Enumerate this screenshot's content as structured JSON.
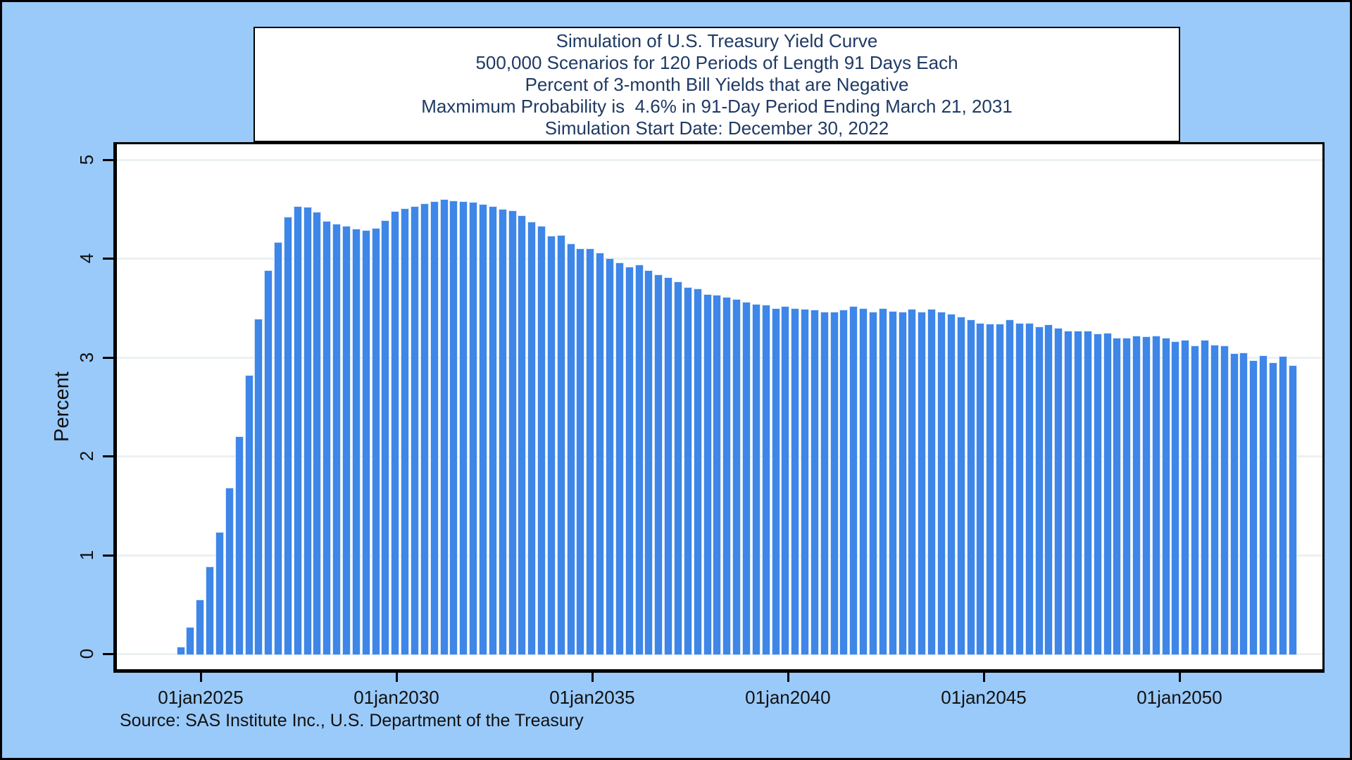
{
  "window": {
    "background_color": "#9ACAFA",
    "frame_color": "#000000"
  },
  "title_box": {
    "text_color": "#1F3A64",
    "lines": [
      "Simulation of U.S. Treasury Yield Curve",
      "500,000 Scenarios for 120 Periods of Length 91 Days Each",
      "Percent of 3-month Bill Yields that are Negative",
      "Maxmimum Probability is  4.6% in 91-Day Period Ending March 21, 2031",
      "Simulation Start Date: December 30, 2022"
    ]
  },
  "source_note": "Source: SAS Institute Inc., U.S. Department of the Treasury",
  "chart_data": {
    "type": "bar",
    "title": "Simulation of U.S. Treasury Yield Curve",
    "subtitle_lines": [
      "500,000 Scenarios for 120 Periods of Length 91 Days Each",
      "Percent of 3-month Bill Yields that are Negative",
      "Maxmimum Probability is  4.6% in 91-Day Period Ending March 21, 2031",
      "Simulation Start Date: December 30, 2022"
    ],
    "xlabel": "",
    "ylabel": "Percent",
    "ylim": [
      0,
      5
    ],
    "yticks": [
      0,
      1,
      2,
      3,
      4,
      5
    ],
    "xtick_labels": [
      "01jan2025",
      "01jan2030",
      "01jan2035",
      "01jan2040",
      "01jan2045",
      "01jan2050"
    ],
    "grid": true,
    "legend_position": "none",
    "bar_color": "#3E86E8",
    "bar_border_color": "#D6E6FA",
    "gridline_color": "#ECF1F1",
    "simulation_start_date": "2022-12-30",
    "period_length_days": 91,
    "n_periods": 120,
    "max_value_pct": 4.6,
    "max_value_period_end": "2031-03-21",
    "values_pct_negative": [
      0,
      0,
      0,
      0,
      0,
      0.07,
      0.27,
      0.55,
      0.88,
      1.23,
      1.68,
      2.2,
      2.82,
      3.39,
      3.88,
      4.17,
      4.42,
      4.53,
      4.52,
      4.47,
      4.38,
      4.35,
      4.33,
      4.3,
      4.29,
      4.31,
      4.39,
      4.48,
      4.51,
      4.53,
      4.56,
      4.58,
      4.6,
      4.59,
      4.58,
      4.57,
      4.55,
      4.53,
      4.5,
      4.49,
      4.44,
      4.37,
      4.33,
      4.23,
      4.24,
      4.15,
      4.1,
      4.1,
      4.06,
      4.0,
      3.96,
      3.92,
      3.94,
      3.88,
      3.84,
      3.81,
      3.77,
      3.71,
      3.7,
      3.64,
      3.63,
      3.61,
      3.59,
      3.56,
      3.54,
      3.53,
      3.5,
      3.52,
      3.5,
      3.49,
      3.48,
      3.46,
      3.46,
      3.48,
      3.52,
      3.5,
      3.46,
      3.5,
      3.47,
      3.46,
      3.49,
      3.46,
      3.49,
      3.46,
      3.44,
      3.41,
      3.38,
      3.35,
      3.34,
      3.34,
      3.38,
      3.35,
      3.35,
      3.31,
      3.33,
      3.3,
      3.27,
      3.27,
      3.27,
      3.24,
      3.25,
      3.2,
      3.2,
      3.22,
      3.21,
      3.22,
      3.2,
      3.16,
      3.18,
      3.12,
      3.18,
      3.13,
      3.12,
      3.04,
      3.05,
      2.97,
      3.02,
      2.95,
      3.01,
      2.92
    ]
  }
}
